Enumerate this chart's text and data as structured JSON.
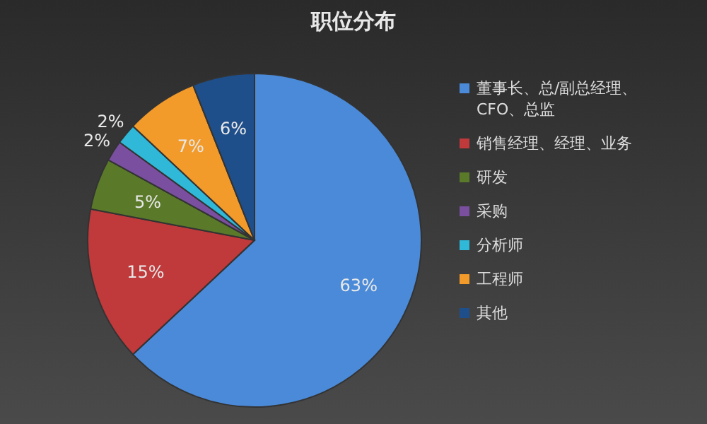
{
  "chart_data": {
    "type": "pie",
    "title": "职位分布",
    "categories": [
      "董事长、总/副总经理、CFO、总监",
      "销售经理、经理、业务",
      "研发",
      "采购",
      "分析师",
      "工程师",
      "其他"
    ],
    "values": [
      63,
      15,
      5,
      2,
      2,
      7,
      6
    ],
    "colors": [
      "#4a8ad8",
      "#c0393b",
      "#5a7a2a",
      "#7a4fa0",
      "#2fb8d8",
      "#f29a2a",
      "#1f4f8a"
    ],
    "value_labels": [
      "63%",
      "15%",
      "5%",
      "2%",
      "2%",
      "7%",
      "6%"
    ],
    "legend": "right"
  }
}
